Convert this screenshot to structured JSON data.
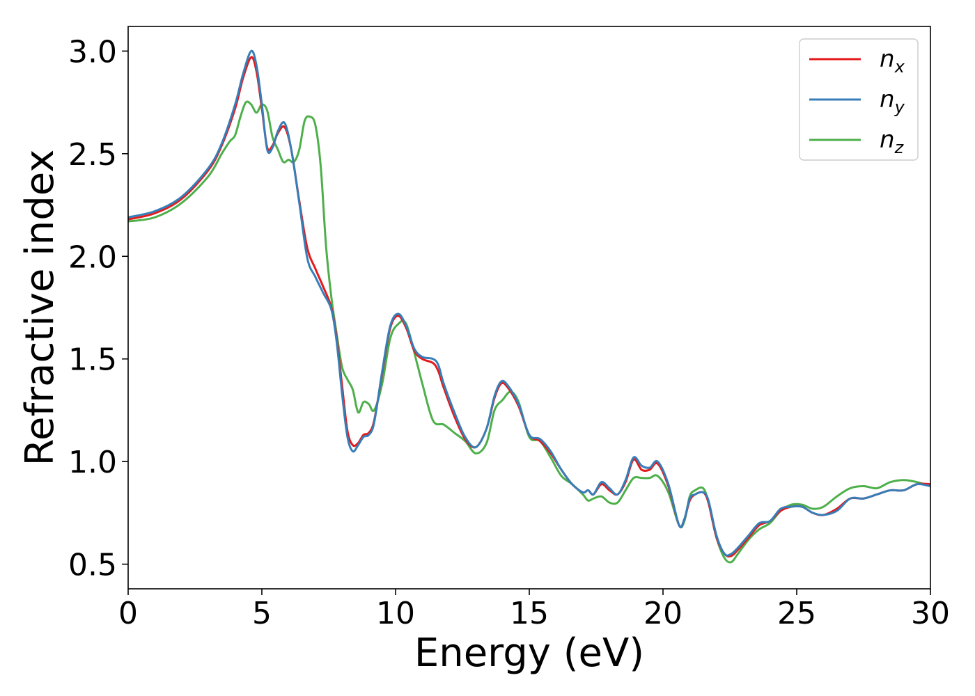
{
  "chart_data": {
    "type": "line",
    "title": "",
    "xlabel": "Energy (eV)",
    "ylabel": "Refractive index",
    "xlim": [
      0,
      30
    ],
    "ylim": [
      0.38,
      3.12
    ],
    "xticks": [
      0,
      5,
      10,
      15,
      20,
      25,
      30
    ],
    "yticks": [
      0.5,
      1.0,
      1.5,
      2.0,
      2.5,
      3.0
    ],
    "xtick_labels": [
      "0",
      "5",
      "10",
      "15",
      "20",
      "25",
      "30"
    ],
    "ytick_labels": [
      "0.5",
      "1.0",
      "1.5",
      "2.0",
      "2.5",
      "3.0"
    ],
    "grid": false,
    "legend_position": "top-right",
    "series": [
      {
        "name": "n_x",
        "label_base": "n",
        "label_sub": "x",
        "color": "#e41a1c",
        "x": [
          0,
          1,
          2,
          3,
          3.5,
          4,
          4.3,
          4.6,
          4.8,
          5.0,
          5.2,
          5.4,
          5.6,
          5.85,
          6.1,
          6.4,
          6.7,
          7.0,
          7.3,
          7.6,
          7.8,
          8.0,
          8.2,
          8.4,
          8.6,
          8.8,
          9.0,
          9.2,
          9.5,
          9.8,
          10.1,
          10.4,
          10.7,
          11.0,
          11.4,
          11.6,
          11.8,
          12.2,
          12.6,
          13.0,
          13.4,
          13.7,
          13.95,
          14.2,
          14.6,
          15.0,
          15.4,
          15.8,
          16.2,
          16.6,
          17.0,
          17.2,
          17.4,
          17.7,
          18.0,
          18.3,
          18.6,
          18.9,
          19.2,
          19.5,
          19.8,
          20.2,
          20.6,
          20.8,
          21.0,
          21.2,
          21.5,
          21.7,
          22.0,
          22.3,
          22.55,
          22.8,
          23.2,
          23.6,
          24.0,
          24.4,
          24.8,
          25.2,
          25.6,
          26.0,
          26.5,
          27.0,
          27.5,
          28.0,
          28.5,
          29.0,
          29.5,
          30.0
        ],
        "y": [
          2.18,
          2.21,
          2.28,
          2.42,
          2.54,
          2.72,
          2.87,
          2.97,
          2.9,
          2.72,
          2.53,
          2.54,
          2.6,
          2.63,
          2.52,
          2.27,
          2.04,
          1.94,
          1.85,
          1.75,
          1.6,
          1.37,
          1.15,
          1.08,
          1.09,
          1.13,
          1.14,
          1.2,
          1.43,
          1.65,
          1.71,
          1.65,
          1.54,
          1.5,
          1.48,
          1.44,
          1.36,
          1.22,
          1.11,
          1.07,
          1.16,
          1.31,
          1.38,
          1.36,
          1.27,
          1.13,
          1.1,
          1.04,
          0.96,
          0.89,
          0.85,
          0.86,
          0.84,
          0.89,
          0.86,
          0.84,
          0.9,
          1.01,
          0.96,
          0.96,
          0.99,
          0.88,
          0.69,
          0.72,
          0.81,
          0.84,
          0.85,
          0.8,
          0.63,
          0.55,
          0.54,
          0.57,
          0.63,
          0.69,
          0.71,
          0.76,
          0.78,
          0.78,
          0.75,
          0.74,
          0.77,
          0.82,
          0.82,
          0.84,
          0.86,
          0.86,
          0.89,
          0.89
        ]
      },
      {
        "name": "n_y",
        "label_base": "n",
        "label_sub": "y",
        "color": "#377eb8",
        "x": [
          0,
          1,
          2,
          3,
          3.5,
          4,
          4.3,
          4.6,
          4.8,
          5.0,
          5.2,
          5.4,
          5.6,
          5.85,
          6.1,
          6.4,
          6.7,
          7.0,
          7.3,
          7.6,
          7.8,
          8.0,
          8.2,
          8.4,
          8.6,
          8.8,
          9.0,
          9.2,
          9.5,
          9.8,
          10.1,
          10.4,
          10.7,
          11.0,
          11.4,
          11.6,
          11.8,
          12.2,
          12.6,
          13.0,
          13.4,
          13.7,
          13.95,
          14.2,
          14.6,
          15.0,
          15.4,
          15.8,
          16.2,
          16.6,
          17.0,
          17.2,
          17.4,
          17.7,
          18.0,
          18.3,
          18.6,
          18.9,
          19.2,
          19.5,
          19.8,
          20.2,
          20.6,
          20.8,
          21.0,
          21.2,
          21.5,
          21.7,
          22.0,
          22.3,
          22.55,
          22.8,
          23.2,
          23.6,
          24.0,
          24.4,
          24.8,
          25.2,
          25.6,
          26.0,
          26.5,
          27.0,
          27.5,
          28.0,
          28.5,
          29.0,
          29.5,
          30.0
        ],
        "y": [
          2.19,
          2.22,
          2.29,
          2.43,
          2.55,
          2.74,
          2.89,
          3.0,
          2.93,
          2.74,
          2.52,
          2.53,
          2.61,
          2.65,
          2.52,
          2.26,
          1.99,
          1.9,
          1.82,
          1.74,
          1.58,
          1.33,
          1.12,
          1.05,
          1.08,
          1.12,
          1.13,
          1.19,
          1.44,
          1.66,
          1.72,
          1.66,
          1.55,
          1.51,
          1.5,
          1.47,
          1.38,
          1.24,
          1.12,
          1.07,
          1.16,
          1.32,
          1.39,
          1.37,
          1.28,
          1.13,
          1.11,
          1.05,
          0.96,
          0.89,
          0.85,
          0.86,
          0.84,
          0.9,
          0.87,
          0.84,
          0.91,
          1.02,
          0.98,
          0.97,
          1.0,
          0.89,
          0.69,
          0.72,
          0.82,
          0.84,
          0.85,
          0.81,
          0.64,
          0.55,
          0.55,
          0.58,
          0.64,
          0.7,
          0.71,
          0.77,
          0.78,
          0.78,
          0.75,
          0.74,
          0.76,
          0.82,
          0.82,
          0.84,
          0.86,
          0.86,
          0.89,
          0.88
        ]
      },
      {
        "name": "n_z",
        "label_base": "n",
        "label_sub": "z",
        "color": "#4daf4a",
        "x": [
          0,
          1,
          2,
          3,
          3.5,
          3.8,
          4.0,
          4.2,
          4.4,
          4.6,
          4.8,
          5.0,
          5.2,
          5.4,
          5.6,
          5.8,
          6.0,
          6.2,
          6.4,
          6.6,
          6.8,
          7.0,
          7.2,
          7.4,
          7.6,
          7.8,
          8.0,
          8.2,
          8.4,
          8.6,
          8.8,
          9.0,
          9.2,
          9.5,
          9.8,
          10.1,
          10.4,
          10.8,
          11.0,
          11.4,
          11.8,
          12.2,
          12.6,
          13.0,
          13.4,
          13.7,
          14.0,
          14.3,
          14.6,
          15.0,
          15.4,
          15.8,
          16.2,
          16.6,
          17.0,
          17.2,
          17.4,
          17.7,
          18.0,
          18.3,
          18.6,
          18.9,
          19.2,
          19.5,
          19.8,
          20.2,
          20.6,
          20.8,
          21.0,
          21.2,
          21.5,
          21.7,
          22.0,
          22.3,
          22.55,
          22.8,
          23.2,
          23.6,
          24.0,
          24.4,
          24.8,
          25.2,
          25.6,
          26.0,
          26.5,
          27.0,
          27.5,
          28.0,
          28.5,
          29.0,
          29.5,
          30.0
        ],
        "y": [
          2.17,
          2.19,
          2.26,
          2.39,
          2.5,
          2.56,
          2.59,
          2.68,
          2.75,
          2.74,
          2.7,
          2.74,
          2.71,
          2.58,
          2.52,
          2.46,
          2.47,
          2.46,
          2.52,
          2.66,
          2.68,
          2.64,
          2.44,
          2.05,
          1.8,
          1.62,
          1.46,
          1.4,
          1.35,
          1.24,
          1.29,
          1.28,
          1.25,
          1.38,
          1.6,
          1.67,
          1.67,
          1.48,
          1.38,
          1.2,
          1.18,
          1.14,
          1.1,
          1.04,
          1.09,
          1.25,
          1.3,
          1.34,
          1.29,
          1.12,
          1.1,
          1.02,
          0.93,
          0.89,
          0.84,
          0.81,
          0.82,
          0.83,
          0.8,
          0.8,
          0.86,
          0.92,
          0.92,
          0.92,
          0.93,
          0.85,
          0.69,
          0.71,
          0.83,
          0.86,
          0.87,
          0.8,
          0.63,
          0.53,
          0.51,
          0.55,
          0.62,
          0.67,
          0.7,
          0.76,
          0.79,
          0.79,
          0.77,
          0.78,
          0.83,
          0.87,
          0.88,
          0.87,
          0.9,
          0.91,
          0.9,
          0.88
        ]
      }
    ]
  }
}
